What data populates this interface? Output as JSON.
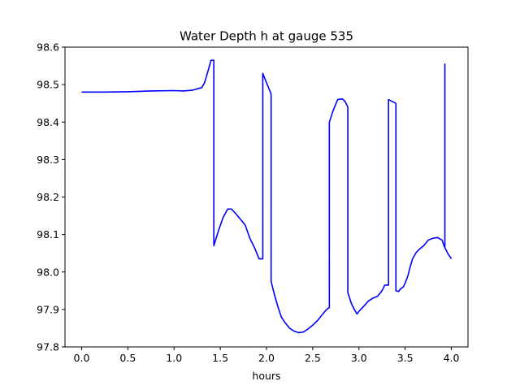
{
  "chart_data": {
    "type": "line",
    "title": "Water Depth h at gauge 535",
    "xlabel": "hours",
    "ylabel": "",
    "xlim": [
      -0.18,
      4.18
    ],
    "ylim": [
      97.8,
      98.6
    ],
    "xticks": [
      0.0,
      0.5,
      1.0,
      1.5,
      2.0,
      2.5,
      3.0,
      3.5,
      4.0
    ],
    "xtick_labels": [
      "0.0",
      "0.5",
      "1.0",
      "1.5",
      "2.0",
      "2.5",
      "3.0",
      "3.5",
      "4.0"
    ],
    "yticks": [
      97.8,
      97.9,
      98.0,
      98.1,
      98.2,
      98.3,
      98.4,
      98.5,
      98.6
    ],
    "ytick_labels": [
      "97.8",
      "97.9",
      "98.0",
      "98.1",
      "98.2",
      "98.3",
      "98.4",
      "98.5",
      "98.6"
    ],
    "grid": false,
    "color": "#0000ff",
    "series": [
      {
        "x": [
          0.0,
          0.25,
          0.5,
          0.75,
          1.0,
          1.1,
          1.2,
          1.3,
          1.33,
          1.36,
          1.4,
          1.43,
          1.43,
          1.48,
          1.53,
          1.58,
          1.62,
          1.67,
          1.72,
          1.77,
          1.82,
          1.87,
          1.92,
          1.96,
          1.96,
          2.0,
          2.05,
          2.05,
          2.08,
          2.12,
          2.16,
          2.2,
          2.25,
          2.3,
          2.35,
          2.4,
          2.45,
          2.5,
          2.55,
          2.6,
          2.65,
          2.68,
          2.68,
          2.72,
          2.77,
          2.82,
          2.85,
          2.88,
          2.88,
          2.92,
          2.95,
          2.98,
          3.0,
          3.05,
          3.1,
          3.15,
          3.2,
          3.25,
          3.28,
          3.3,
          3.32,
          3.32,
          3.4,
          3.4,
          3.43,
          3.45,
          3.48,
          3.5,
          3.53,
          3.55,
          3.58,
          3.62,
          3.65,
          3.7,
          3.75,
          3.8,
          3.85,
          3.9,
          3.92,
          3.93,
          3.93,
          3.93,
          3.96,
          4.0
        ],
        "y": [
          98.48,
          98.48,
          98.481,
          98.483,
          98.484,
          98.483,
          98.485,
          98.492,
          98.505,
          98.53,
          98.565,
          98.565,
          98.07,
          98.11,
          98.145,
          98.168,
          98.168,
          98.155,
          98.14,
          98.125,
          98.09,
          98.065,
          98.035,
          98.035,
          98.53,
          98.505,
          98.475,
          97.975,
          97.945,
          97.91,
          97.88,
          97.865,
          97.85,
          97.842,
          97.838,
          97.84,
          97.848,
          97.858,
          97.87,
          97.885,
          97.9,
          97.905,
          98.4,
          98.43,
          98.46,
          98.462,
          98.455,
          98.44,
          97.945,
          97.915,
          97.9,
          97.888,
          97.895,
          97.908,
          97.922,
          97.93,
          97.935,
          97.95,
          97.965,
          97.965,
          97.965,
          98.46,
          98.45,
          97.95,
          97.948,
          97.955,
          97.96,
          97.97,
          97.99,
          98.01,
          98.035,
          98.052,
          98.06,
          98.07,
          98.085,
          98.09,
          98.092,
          98.085,
          98.07,
          98.065,
          98.555,
          98.065,
          98.05,
          98.035
        ]
      }
    ]
  }
}
